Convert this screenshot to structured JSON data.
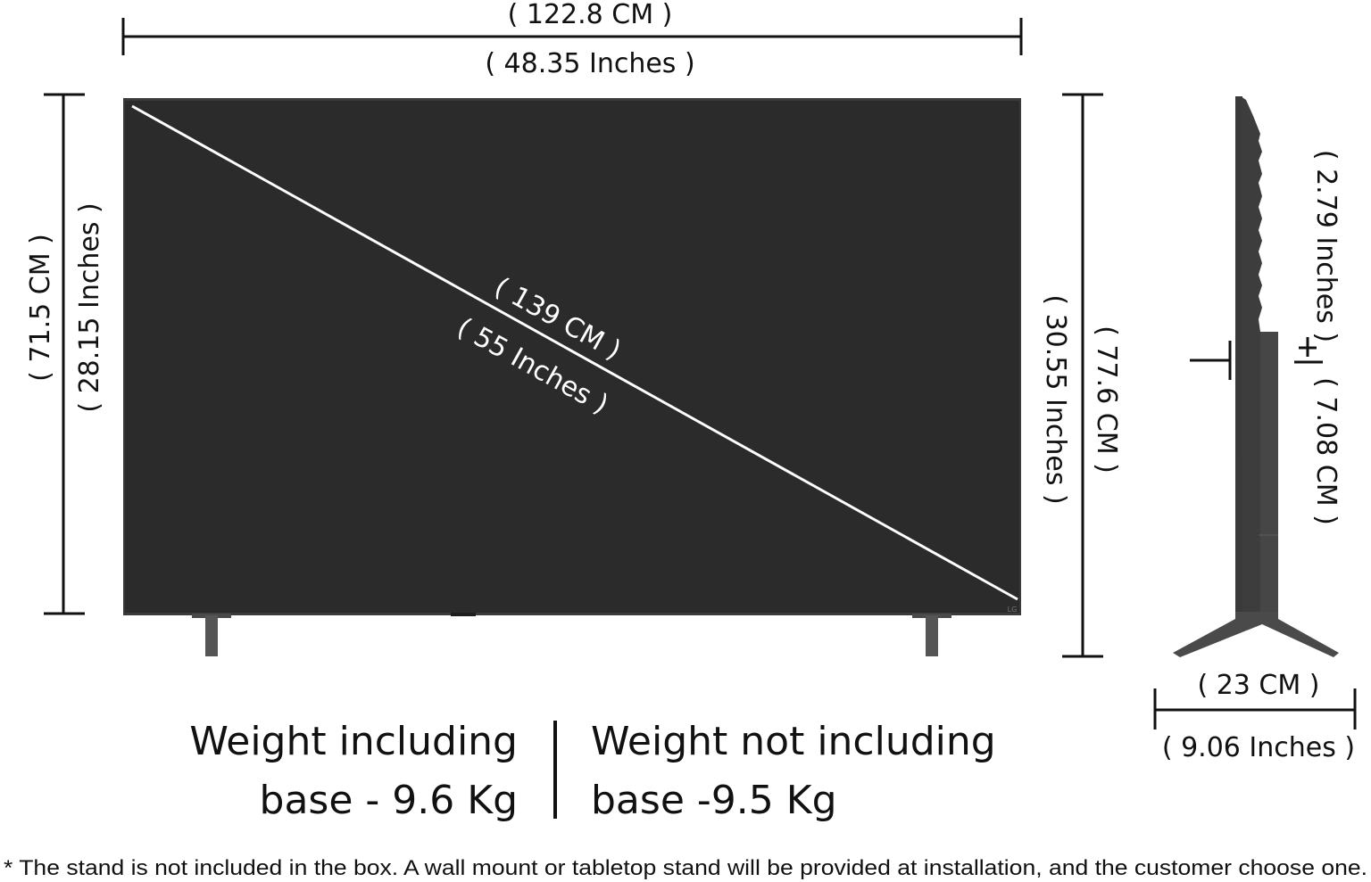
{
  "colors": {
    "screen": "#2b2b2b",
    "bezel": "#3a3a3a",
    "stand": "#4a4a4a",
    "ink": "#111111",
    "diagonal": "#ffffff"
  },
  "dimensions": {
    "width_cm": "( 122.8 CM )",
    "width_in": "( 48.35 Inches )",
    "screen_height_cm": "( 71.5 CM )",
    "screen_height_in": "( 28.15  Inches )",
    "diagonal_cm": "( 139 CM )",
    "diagonal_in": "( 55 Inches )",
    "total_height_in": "( 30.55  Inches )",
    "total_height_cm": "( 77.6 CM )",
    "depth_in": "( 2.79  Inches )",
    "stand_height_cm": "( 7.08 CM )",
    "stand_depth_cm": "( 23 CM )",
    "stand_depth_in": "( 9.06 Inches )"
  },
  "weights": {
    "with_base_line1": "Weight including",
    "with_base_line2": "base - 9.6 Kg",
    "without_base_line1": "Weight not including",
    "without_base_line2": "base -9.5 Kg"
  },
  "note": "* The stand is not included in the box. A wall mount or tabletop stand will be provided at installation, and the customer choose one."
}
